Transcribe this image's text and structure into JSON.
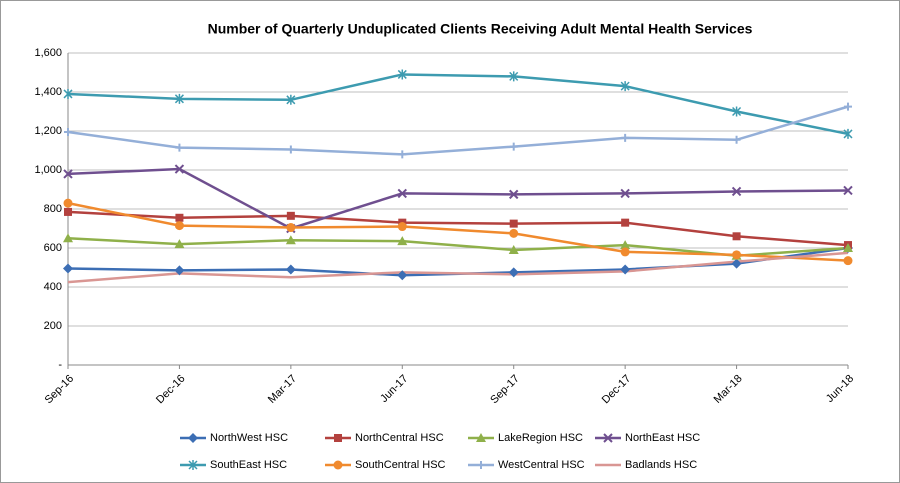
{
  "chart_data": {
    "type": "line",
    "title": "Number of Quarterly Unduplicated Clients Receiving Adult Mental Health Services",
    "categories": [
      "Sep-16",
      "Dec-16",
      "Mar-17",
      "Jun-17",
      "Sep-17",
      "Dec-17",
      "Mar-18",
      "Jun-18"
    ],
    "ylim": [
      0,
      1600
    ],
    "yticks": [
      {
        "value": 0,
        "label": "-"
      },
      200,
      400,
      600,
      800,
      {
        "value": 1000,
        "label": "1,000"
      },
      {
        "value": 1200,
        "label": "1,200"
      },
      {
        "value": 1400,
        "label": "1,400"
      },
      {
        "value": 1600,
        "label": "1,600"
      }
    ],
    "grid": true,
    "legend": "bottom",
    "series": [
      {
        "name": "NorthWest HSC",
        "color": "#3c6eb4",
        "marker": "diamond",
        "values": [
          495,
          485,
          490,
          460,
          475,
          490,
          520,
          600
        ]
      },
      {
        "name": "NorthCentral HSC",
        "color": "#b3413e",
        "marker": "square",
        "values": [
          785,
          755,
          765,
          730,
          725,
          730,
          660,
          615
        ]
      },
      {
        "name": "LakeRegion HSC",
        "color": "#8fb04a",
        "marker": "triangle",
        "values": [
          650,
          620,
          640,
          635,
          590,
          615,
          560,
          600
        ]
      },
      {
        "name": "NorthEast HSC",
        "color": "#6f4f8f",
        "marker": "x",
        "values": [
          980,
          1005,
          700,
          880,
          875,
          880,
          890,
          895
        ]
      },
      {
        "name": "SouthEast HSC",
        "color": "#3d9bb0",
        "marker": "star",
        "values": [
          1390,
          1365,
          1360,
          1490,
          1480,
          1430,
          1300,
          1185
        ]
      },
      {
        "name": "SouthCentral HSC",
        "color": "#f08a2e",
        "marker": "circle",
        "values": [
          830,
          715,
          705,
          710,
          675,
          580,
          565,
          535
        ]
      },
      {
        "name": "WestCentral HSC",
        "color": "#94afd8",
        "marker": "plus",
        "values": [
          1195,
          1115,
          1105,
          1080,
          1120,
          1165,
          1155,
          1325
        ]
      },
      {
        "name": "Badlands HSC",
        "color": "#d99693",
        "marker": "none",
        "values": [
          425,
          470,
          450,
          475,
          465,
          480,
          530,
          575
        ]
      }
    ]
  }
}
